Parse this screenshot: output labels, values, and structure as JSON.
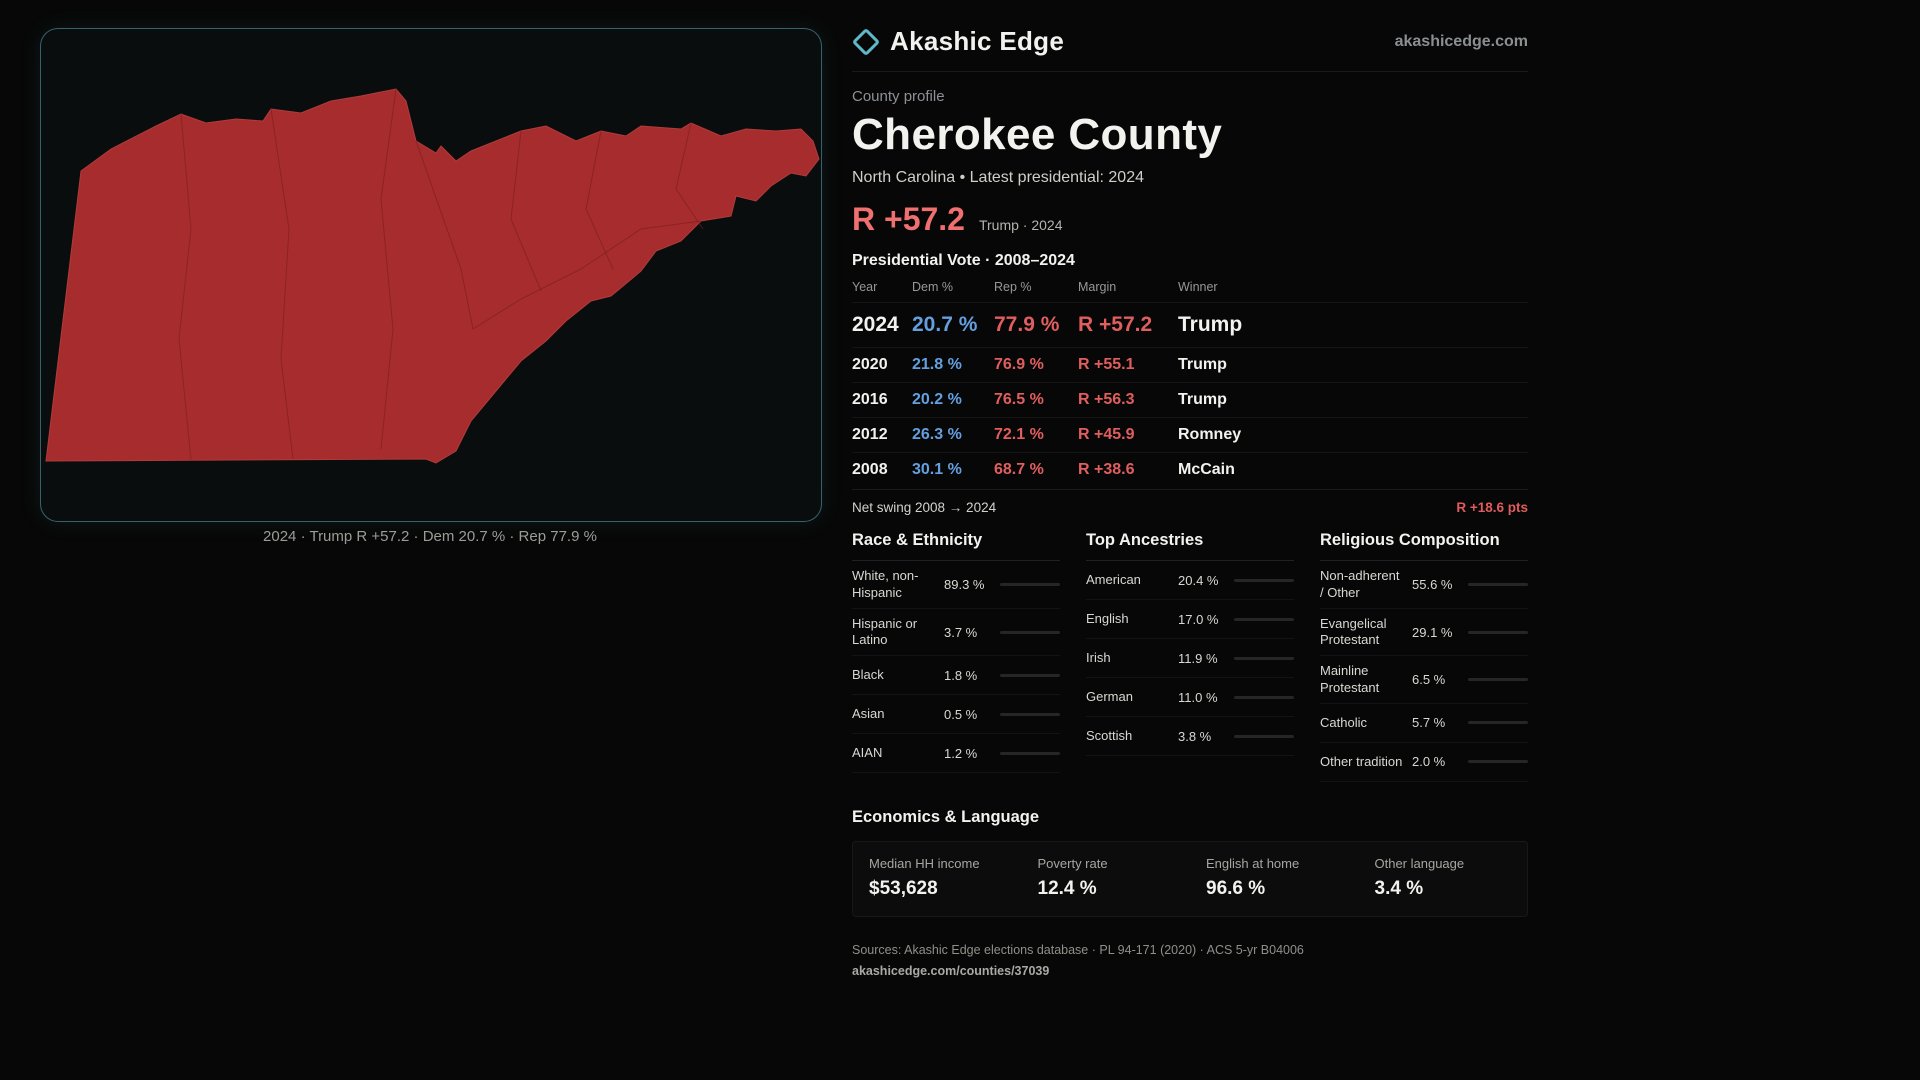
{
  "brand": {
    "name": "Akashic Edge",
    "domain": "akashicedge.com",
    "accent_color": "#5fb8c9"
  },
  "map": {
    "caption": "2024 · Trump R +57.2 · Dem 20.7 % · Rep 77.9 %",
    "fill_color": "#a62c2e"
  },
  "profile": {
    "kicker": "County profile",
    "title": "Cherokee County",
    "subtitle": "North Carolina • Latest presidential: 2024",
    "headline_margin": "R +57.2",
    "headline_context": "Trump · 2024"
  },
  "colors": {
    "dem": "#64a0e0",
    "rep": "#e05e5e",
    "headline_red": "#f06f6f"
  },
  "table": {
    "title": "Presidential Vote · 2008–2024",
    "columns": [
      "Year",
      "Dem %",
      "Rep %",
      "Margin",
      "Winner"
    ],
    "rows": [
      {
        "year": "2024",
        "dem": "20.7 %",
        "rep": "77.9 %",
        "margin": "R +57.2",
        "winner": "Trump"
      },
      {
        "year": "2020",
        "dem": "21.8 %",
        "rep": "76.9 %",
        "margin": "R +55.1",
        "winner": "Trump"
      },
      {
        "year": "2016",
        "dem": "20.2 %",
        "rep": "76.5 %",
        "margin": "R +56.3",
        "winner": "Trump"
      },
      {
        "year": "2012",
        "dem": "26.3 %",
        "rep": "72.1 %",
        "margin": "R +45.9",
        "winner": "Romney"
      },
      {
        "year": "2008",
        "dem": "30.1 %",
        "rep": "68.7 %",
        "margin": "R +38.6",
        "winner": "McCain"
      }
    ],
    "net_swing_label": "Net swing 2008 → 2024",
    "net_swing_value": "R +18.6 pts"
  },
  "race": {
    "title": "Race & Ethnicity",
    "items": [
      {
        "label": "White, non-Hispanic",
        "value": "89.3 %",
        "pct": 89.3,
        "color": "#b8c0c8"
      },
      {
        "label": "Hispanic or Latino",
        "value": "3.7 %",
        "pct": 3.7,
        "color": "#e0a23e"
      },
      {
        "label": "Black",
        "value": "1.8 %",
        "pct": 1.8,
        "color": "#6f86d6"
      },
      {
        "label": "Asian",
        "value": "0.5 %",
        "pct": 0.5,
        "color": "#b8c0c8"
      },
      {
        "label": "AIAN",
        "value": "1.2 %",
        "pct": 1.2,
        "color": "#d9823f"
      }
    ]
  },
  "ancestries": {
    "title": "Top Ancestries",
    "items": [
      {
        "label": "American",
        "value": "20.4 %",
        "pct": 20.4,
        "color": "#a8b0b8"
      },
      {
        "label": "English",
        "value": "17.0 %",
        "pct": 17.0,
        "color": "#a8b0b8"
      },
      {
        "label": "Irish",
        "value": "11.9 %",
        "pct": 11.9,
        "color": "#a8b0b8"
      },
      {
        "label": "German",
        "value": "11.0 %",
        "pct": 11.0,
        "color": "#a8b0b8"
      },
      {
        "label": "Scottish",
        "value": "3.8 %",
        "pct": 3.8,
        "color": "#a8b0b8"
      }
    ]
  },
  "religion": {
    "title": "Religious Composition",
    "items": [
      {
        "label": "Non-adherent / Other",
        "value": "55.6 %",
        "pct": 55.6,
        "color": "#a8b0b8"
      },
      {
        "label": "Evangelical Protestant",
        "value": "29.1 %",
        "pct": 29.1,
        "color": "#e06a6a"
      },
      {
        "label": "Mainline Protestant",
        "value": "6.5 %",
        "pct": 6.5,
        "color": "#5f8df0"
      },
      {
        "label": "Catholic",
        "value": "5.7 %",
        "pct": 5.7,
        "color": "#e0b63e"
      },
      {
        "label": "Other tradition",
        "value": "2.0 %",
        "pct": 2.0,
        "color": "#a8b0b8"
      }
    ]
  },
  "econ": {
    "title": "Economics & Language",
    "stats": [
      {
        "label": "Median HH income",
        "value": "$53,628"
      },
      {
        "label": "Poverty rate",
        "value": "12.4 %"
      },
      {
        "label": "English at home",
        "value": "96.6 %"
      },
      {
        "label": "Other language",
        "value": "3.4 %"
      }
    ]
  },
  "footer": {
    "sources": "Sources: Akashic Edge elections database · PL 94-171 (2020) · ACS 5-yr B04006",
    "permalink": "akashicedge.com/counties/37039"
  }
}
